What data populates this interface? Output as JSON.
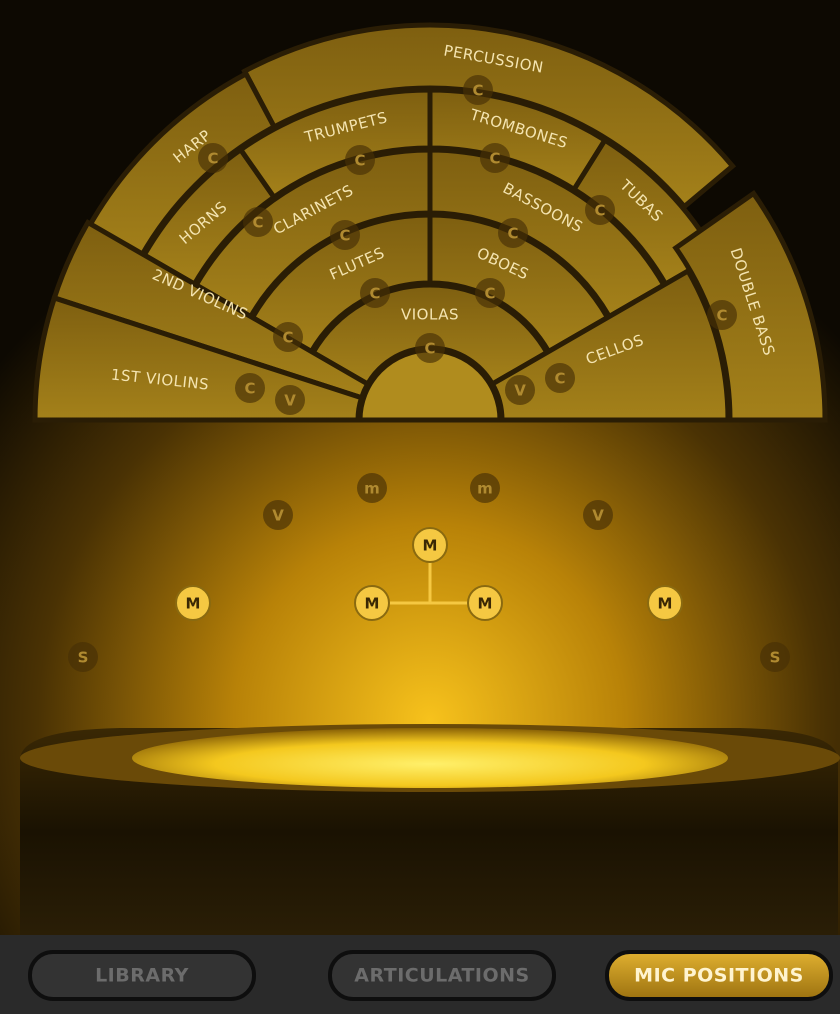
{
  "sections": [
    {
      "name": "PERCUSSION",
      "mics": [
        "C"
      ]
    },
    {
      "name": "HARP",
      "mics": [
        "C"
      ]
    },
    {
      "name": "HORNS",
      "mics": [
        "C"
      ]
    },
    {
      "name": "TRUMPETS",
      "mics": [
        "C"
      ]
    },
    {
      "name": "TROMBONES",
      "mics": [
        "C"
      ]
    },
    {
      "name": "TUBAS",
      "mics": [
        "C"
      ]
    },
    {
      "name": "CLARINETS",
      "mics": [
        "C"
      ]
    },
    {
      "name": "BASSOONS",
      "mics": [
        "C"
      ]
    },
    {
      "name": "FLUTES",
      "mics": [
        "C"
      ]
    },
    {
      "name": "OBOES",
      "mics": [
        "C"
      ]
    },
    {
      "name": "VIOLAS",
      "mics": [
        "C"
      ]
    },
    {
      "name": "2ND VIOLINS",
      "mics": [
        "C"
      ]
    },
    {
      "name": "1ST VIOLINS",
      "mics": [
        "C",
        "V"
      ]
    },
    {
      "name": "CELLOS",
      "mics": [
        "V",
        "C"
      ]
    },
    {
      "name": "DOUBLE BASS",
      "mics": [
        "C"
      ]
    }
  ],
  "floor_mics": [
    "m",
    "m",
    "V",
    "V",
    "M",
    "M",
    "M",
    "M",
    "M",
    "S",
    "S"
  ],
  "tabs": [
    "LIBRARY",
    "ARTICULATIONS",
    "MIC POSITIONS"
  ]
}
